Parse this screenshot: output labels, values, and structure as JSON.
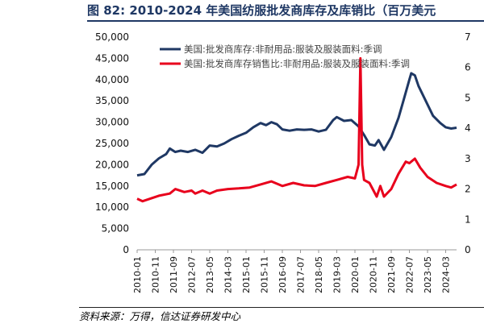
{
  "figure_title": "图 82:  2010-2024 年美国纺服批发商库存及库销比（百万美元",
  "source_note": "资料来源：万得，信达证券研发中心",
  "chart_data": {
    "type": "line",
    "legend_position": "top-left",
    "grid": false,
    "x_tick_labels": [
      "2010-01",
      "2010-11",
      "2011-09",
      "2012-07",
      "2013-05",
      "2014-03",
      "2015-01",
      "2015-11",
      "2016-09",
      "2017-07",
      "2018-05",
      "2019-03",
      "2020-01",
      "2020-11",
      "2021-09",
      "2022-07",
      "2023-05",
      "2024-03"
    ],
    "x_range": [
      "2010-01",
      "2024-09"
    ],
    "y_left": {
      "min": 0,
      "max": 50000,
      "ticks": [
        "0",
        "5,000",
        "10,000",
        "15,000",
        "20,000",
        "25,000",
        "30,000",
        "35,000",
        "40,000",
        "45,000",
        "50,000"
      ]
    },
    "y_right": {
      "min": 0,
      "max": 7,
      "ticks": [
        "0",
        "1",
        "2",
        "3",
        "4",
        "5",
        "6",
        "7"
      ]
    },
    "series": [
      {
        "name": "美国:批发商库存:非耐用品:服装及服装面料:季调",
        "axis": "left",
        "color": "#1f3864",
        "points": [
          [
            "2010-01",
            17500
          ],
          [
            "2010-05",
            17800
          ],
          [
            "2010-09",
            20000
          ],
          [
            "2011-01",
            21500
          ],
          [
            "2011-05",
            22500
          ],
          [
            "2011-07",
            23800
          ],
          [
            "2011-10",
            23000
          ],
          [
            "2012-01",
            23300
          ],
          [
            "2012-05",
            23000
          ],
          [
            "2012-09",
            23500
          ],
          [
            "2013-01",
            22800
          ],
          [
            "2013-05",
            24500
          ],
          [
            "2013-09",
            24300
          ],
          [
            "2014-01",
            25000
          ],
          [
            "2014-05",
            26000
          ],
          [
            "2014-09",
            26800
          ],
          [
            "2015-01",
            27500
          ],
          [
            "2015-05",
            28800
          ],
          [
            "2015-09",
            29800
          ],
          [
            "2015-12",
            29300
          ],
          [
            "2016-03",
            30000
          ],
          [
            "2016-06",
            29500
          ],
          [
            "2016-09",
            28300
          ],
          [
            "2017-01",
            28000
          ],
          [
            "2017-05",
            28300
          ],
          [
            "2017-09",
            28200
          ],
          [
            "2018-01",
            28300
          ],
          [
            "2018-05",
            27800
          ],
          [
            "2018-09",
            28200
          ],
          [
            "2019-01",
            30500
          ],
          [
            "2019-03",
            31200
          ],
          [
            "2019-07",
            30300
          ],
          [
            "2019-11",
            30500
          ],
          [
            "2020-03",
            29000
          ],
          [
            "2020-06",
            27000
          ],
          [
            "2020-09",
            24800
          ],
          [
            "2020-12",
            24500
          ],
          [
            "2021-02",
            25800
          ],
          [
            "2021-05",
            23500
          ],
          [
            "2021-09",
            26500
          ],
          [
            "2022-01",
            31000
          ],
          [
            "2022-04",
            35500
          ],
          [
            "2022-07",
            40000
          ],
          [
            "2022-08",
            41500
          ],
          [
            "2022-10",
            41000
          ],
          [
            "2022-12",
            38500
          ],
          [
            "2023-04",
            35000
          ],
          [
            "2023-08",
            31500
          ],
          [
            "2023-12",
            29800
          ],
          [
            "2024-03",
            28800
          ],
          [
            "2024-06",
            28500
          ],
          [
            "2024-09",
            28700
          ]
        ]
      },
      {
        "name": "美国:批发商库存销售比:非耐用品:服装及服装面料:季调",
        "axis": "right",
        "color": "#e8001c",
        "points": [
          [
            "2010-01",
            1.68
          ],
          [
            "2010-04",
            1.6
          ],
          [
            "2010-09",
            1.7
          ],
          [
            "2011-01",
            1.78
          ],
          [
            "2011-07",
            1.85
          ],
          [
            "2011-10",
            2.0
          ],
          [
            "2012-03",
            1.9
          ],
          [
            "2012-07",
            1.95
          ],
          [
            "2012-09",
            1.85
          ],
          [
            "2013-01",
            1.95
          ],
          [
            "2013-05",
            1.85
          ],
          [
            "2013-09",
            1.95
          ],
          [
            "2014-03",
            2.0
          ],
          [
            "2014-09",
            2.02
          ],
          [
            "2015-03",
            2.05
          ],
          [
            "2015-09",
            2.15
          ],
          [
            "2016-03",
            2.25
          ],
          [
            "2016-09",
            2.1
          ],
          [
            "2017-03",
            2.2
          ],
          [
            "2017-09",
            2.12
          ],
          [
            "2018-03",
            2.1
          ],
          [
            "2018-09",
            2.2
          ],
          [
            "2019-03",
            2.3
          ],
          [
            "2019-09",
            2.4
          ],
          [
            "2020-01",
            2.35
          ],
          [
            "2020-03",
            2.8
          ],
          [
            "2020-04",
            6.3
          ],
          [
            "2020-05",
            2.8
          ],
          [
            "2020-06",
            2.3
          ],
          [
            "2020-09",
            2.2
          ],
          [
            "2021-01",
            1.75
          ],
          [
            "2021-03",
            2.1
          ],
          [
            "2021-05",
            1.75
          ],
          [
            "2021-09",
            2.0
          ],
          [
            "2022-01",
            2.5
          ],
          [
            "2022-05",
            2.9
          ],
          [
            "2022-07",
            2.85
          ],
          [
            "2022-10",
            3.0
          ],
          [
            "2023-01",
            2.7
          ],
          [
            "2023-05",
            2.4
          ],
          [
            "2023-10",
            2.2
          ],
          [
            "2024-03",
            2.1
          ],
          [
            "2024-06",
            2.05
          ],
          [
            "2024-09",
            2.15
          ]
        ]
      }
    ]
  }
}
